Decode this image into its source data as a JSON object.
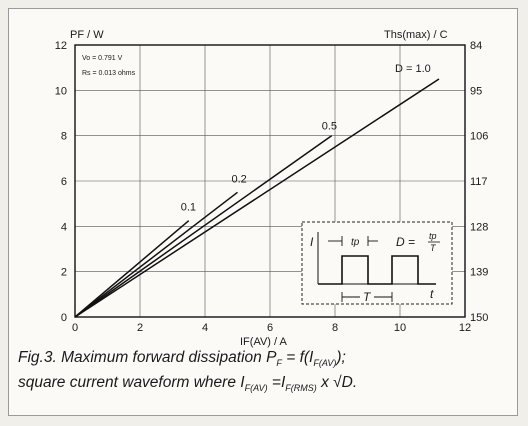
{
  "chart_data": {
    "type": "line",
    "ylabel_left": "PF / W",
    "ylabel_right": "Ths(max) / C",
    "xlabel": "IF(AV) / A",
    "xlim": [
      0,
      12
    ],
    "ylim": [
      0,
      12
    ],
    "x_ticks": [
      "0",
      "2",
      "4",
      "6",
      "8",
      "10",
      "12"
    ],
    "y_ticks_left": [
      "0",
      "2",
      "4",
      "6",
      "8",
      "10",
      "12"
    ],
    "y_ticks_right": [
      "150",
      "139",
      "128",
      "117",
      "106",
      "95",
      "84"
    ],
    "grid": true,
    "parameters": [
      "Vo = 0.791 V",
      "Rs = 0.013 ohms"
    ],
    "series": [
      {
        "name": "0.1",
        "x": [
          0,
          3.5
        ],
        "y": [
          0,
          4.25
        ]
      },
      {
        "name": "0.2",
        "x": [
          0,
          5.0
        ],
        "y": [
          0,
          5.5
        ]
      },
      {
        "name": "0.5",
        "x": [
          0,
          7.9
        ],
        "y": [
          0,
          8.0
        ]
      },
      {
        "name": "D = 1.0",
        "x": [
          0,
          11.2
        ],
        "y": [
          0,
          10.5
        ]
      }
    ],
    "inset": {
      "y_label": "I",
      "tp_label": "tp",
      "formula_lhs": "D =",
      "formula_num": "tp",
      "formula_den": "T",
      "period_label": "T",
      "time_label": "t"
    }
  },
  "caption": {
    "line1_a": "Fig.3.  Maximum forward dissipation P",
    "line1_sub1": "F",
    "line1_b": " = f(I",
    "line1_sub2": "F(AV)",
    "line1_c": ");",
    "line2_a": "square current waveform where I",
    "line2_sub1": "F(AV)",
    "line2_b": " =I",
    "line2_sub2": "F(RMS)",
    "line2_c": " x √D."
  }
}
